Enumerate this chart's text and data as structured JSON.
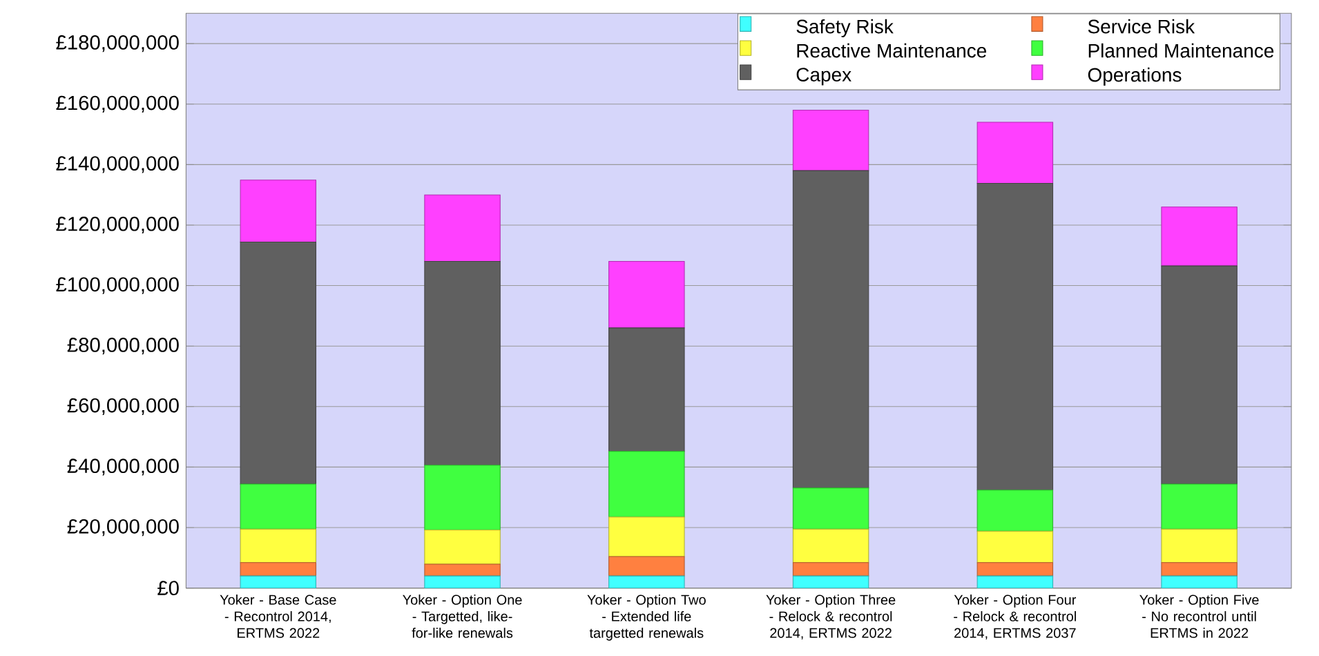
{
  "chart_data": {
    "type": "bar",
    "stacked": true,
    "categories": [
      "Yoker - Base Case - Recontrol 2014, ERTMS 2022",
      "Yoker - Option One - Targetted, like-for-like renewals",
      "Yoker - Option Two - Extended life targetted renewals",
      "Yoker - Option Three - Relock & recontrol 2014, ERTMS 2022",
      "Yoker - Option Four - Relock & recontrol 2014, ERTMS 2037",
      "Yoker - Option Five - No recontrol until ERTMS in 2022"
    ],
    "series": [
      {
        "name": "Safety Risk",
        "color": "#40ffff",
        "values": [
          4000000,
          4000000,
          4000000,
          4000000,
          4000000,
          4000000
        ]
      },
      {
        "name": "Service Risk",
        "color": "#ff8040",
        "values": [
          4400000,
          3900000,
          6400000,
          4400000,
          4400000,
          4400000
        ]
      },
      {
        "name": "Reactive Maintenance",
        "color": "#ffff40",
        "values": [
          11100000,
          11300000,
          13100000,
          11100000,
          10400000,
          11100000
        ]
      },
      {
        "name": "Planned Maintenance",
        "color": "#40ff40",
        "values": [
          14900000,
          21400000,
          21700000,
          13600000,
          13600000,
          14900000
        ]
      },
      {
        "name": "Capex",
        "color": "#606060",
        "values": [
          80000000,
          67400000,
          40800000,
          104900000,
          101400000,
          72100000
        ]
      },
      {
        "name": "Operations",
        "color": "#ff40ff",
        "values": [
          20500000,
          22000000,
          22000000,
          20000000,
          20200000,
          19500000
        ]
      }
    ],
    "ylim": [
      0,
      190000000
    ],
    "yticks": [
      {
        "value": 0,
        "label": "£0"
      },
      {
        "value": 20000000,
        "label": "£20,000,000"
      },
      {
        "value": 40000000,
        "label": "£40,000,000"
      },
      {
        "value": 60000000,
        "label": "£60,000,000"
      },
      {
        "value": 80000000,
        "label": "£80,000,000"
      },
      {
        "value": 100000000,
        "label": "£100,000,000"
      },
      {
        "value": 120000000,
        "label": "£120,000,000"
      },
      {
        "value": 140000000,
        "label": "£140,000,000"
      },
      {
        "value": 160000000,
        "label": "£160,000,000"
      },
      {
        "value": 180000000,
        "label": "£180,000,000"
      }
    ],
    "grid": "y",
    "legend": "top right"
  }
}
